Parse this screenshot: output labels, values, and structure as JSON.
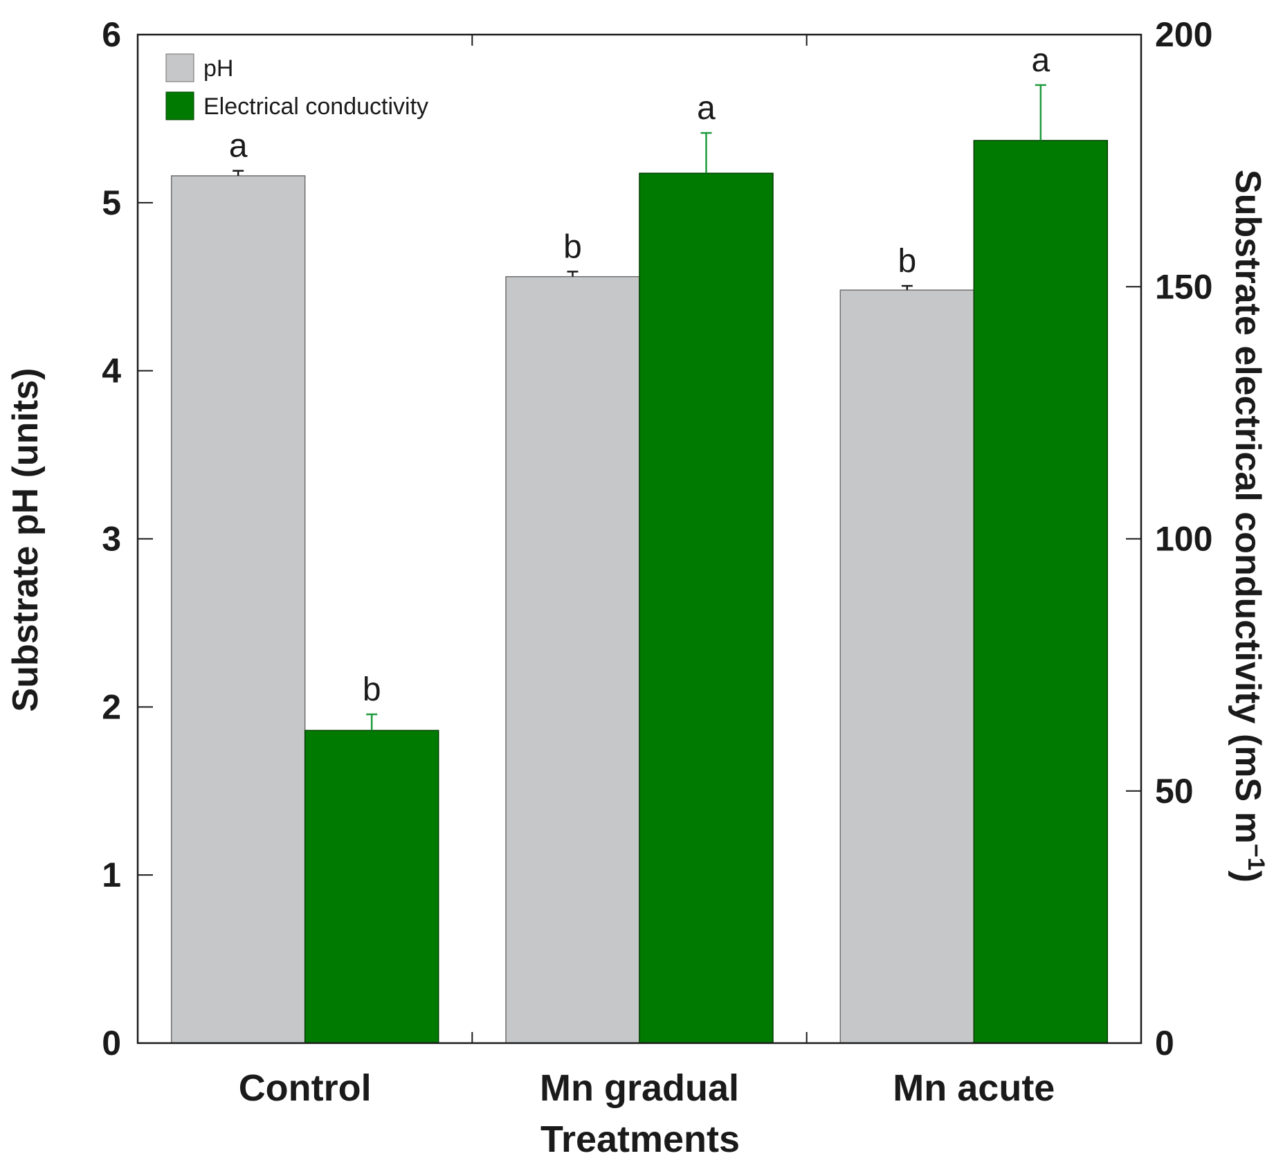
{
  "chart_data": {
    "type": "bar",
    "xlabel": "Treatments",
    "ylabel_left": "Substrate pH (units)",
    "ylabel_right": "Substrate electrical conductivity (mS m",
    "ylabel_right_sup": "−1",
    "ylabel_right_close": ")",
    "ylim_left": [
      0,
      6
    ],
    "ylim_right": [
      0,
      200
    ],
    "yticks_left": [
      "0",
      "1",
      "2",
      "3",
      "4",
      "5",
      "6"
    ],
    "yticks_right": [
      "0",
      "50",
      "100",
      "150",
      "200"
    ],
    "categories": [
      "Control",
      "Mn gradual",
      "Mn acute"
    ],
    "legend_position": "top-left",
    "series": [
      {
        "name": "pH",
        "axis": "left",
        "color": "#c6c7c9",
        "edge_color": "#6e6e6e",
        "error_color": "#1a1a1a",
        "values": [
          5.16,
          4.56,
          4.48
        ],
        "errors": [
          0.03,
          0.03,
          0.025
        ],
        "letters": [
          "a",
          "b",
          "b"
        ]
      },
      {
        "name": "Electrical conductivity",
        "axis": "right",
        "color": "#007a00",
        "edge_color": "#003d00",
        "error_color": "#1f9a3c",
        "values": [
          62,
          172.5,
          179
        ],
        "errors": [
          3.2,
          8,
          11
        ],
        "letters": [
          "b",
          "a",
          "a"
        ]
      }
    ]
  }
}
